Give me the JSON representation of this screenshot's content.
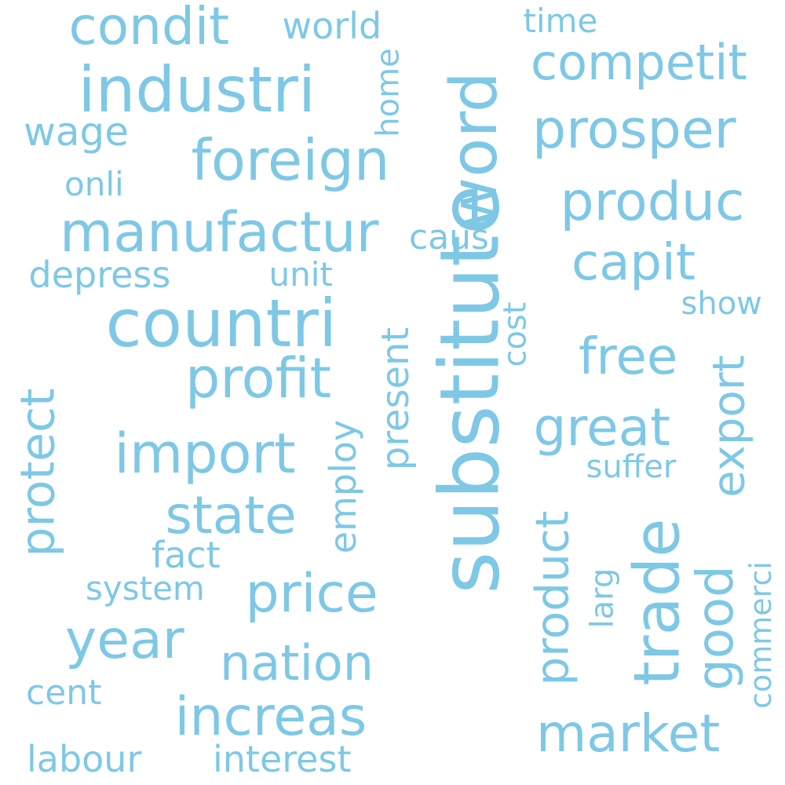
{
  "color": "#7ec8e6",
  "words": [
    {
      "text": "substitute",
      "weight": 104,
      "orientation": "vertical"
    },
    {
      "text": "countri",
      "weight": 84,
      "orientation": "horizontal"
    },
    {
      "text": "industri",
      "weight": 80,
      "orientation": "horizontal"
    },
    {
      "text": "word",
      "weight": 82,
      "orientation": "vertical"
    },
    {
      "text": "trade",
      "weight": 80,
      "orientation": "vertical"
    },
    {
      "text": "foreign",
      "weight": 72,
      "orientation": "horizontal"
    },
    {
      "text": "manufactur",
      "weight": 70,
      "orientation": "horizontal"
    },
    {
      "text": "import",
      "weight": 70,
      "orientation": "horizontal"
    },
    {
      "text": "profit",
      "weight": 70,
      "orientation": "horizontal"
    },
    {
      "text": "prosper",
      "weight": 68,
      "orientation": "horizontal"
    },
    {
      "text": "produc",
      "weight": 68,
      "orientation": "horizontal"
    },
    {
      "text": "increas",
      "weight": 68,
      "orientation": "horizontal"
    },
    {
      "text": "price",
      "weight": 68,
      "orientation": "horizontal"
    },
    {
      "text": "year",
      "weight": 68,
      "orientation": "horizontal"
    },
    {
      "text": "great",
      "weight": 66,
      "orientation": "horizontal"
    },
    {
      "text": "state",
      "weight": 66,
      "orientation": "horizontal"
    },
    {
      "text": "condit",
      "weight": 66,
      "orientation": "horizontal"
    },
    {
      "text": "market",
      "weight": 66,
      "orientation": "horizontal"
    },
    {
      "text": "capit",
      "weight": 64,
      "orientation": "horizontal"
    },
    {
      "text": "free",
      "weight": 64,
      "orientation": "horizontal"
    },
    {
      "text": "good",
      "weight": 64,
      "orientation": "vertical"
    },
    {
      "text": "competit",
      "weight": 62,
      "orientation": "horizontal"
    },
    {
      "text": "nation",
      "weight": 62,
      "orientation": "horizontal"
    },
    {
      "text": "protect",
      "weight": 60,
      "orientation": "vertical"
    },
    {
      "text": "product",
      "weight": 58,
      "orientation": "vertical"
    },
    {
      "text": "export",
      "weight": 56,
      "orientation": "vertical"
    },
    {
      "text": "wage",
      "weight": 50,
      "orientation": "horizontal"
    },
    {
      "text": "present",
      "weight": 48,
      "orientation": "vertical"
    },
    {
      "text": "world",
      "weight": 46,
      "orientation": "horizontal"
    },
    {
      "text": "labour",
      "weight": 46,
      "orientation": "horizontal"
    },
    {
      "text": "interest",
      "weight": 46,
      "orientation": "horizontal"
    },
    {
      "text": "depress",
      "weight": 46,
      "orientation": "horizontal"
    },
    {
      "text": "fact",
      "weight": 46,
      "orientation": "horizontal"
    },
    {
      "text": "employ",
      "weight": 46,
      "orientation": "vertical"
    },
    {
      "text": "caus",
      "weight": 44,
      "orientation": "horizontal"
    },
    {
      "text": "cent",
      "weight": 44,
      "orientation": "horizontal"
    },
    {
      "text": "system",
      "weight": 42,
      "orientation": "horizontal"
    },
    {
      "text": "onli",
      "weight": 42,
      "orientation": "horizontal"
    },
    {
      "text": "unit",
      "weight": 42,
      "orientation": "horizontal"
    },
    {
      "text": "time",
      "weight": 42,
      "orientation": "horizontal"
    },
    {
      "text": "show",
      "weight": 40,
      "orientation": "horizontal"
    },
    {
      "text": "suffer",
      "weight": 40,
      "orientation": "horizontal"
    },
    {
      "text": "cost",
      "weight": 40,
      "orientation": "vertical"
    },
    {
      "text": "home",
      "weight": 40,
      "orientation": "vertical"
    },
    {
      "text": "larg",
      "weight": 40,
      "orientation": "vertical"
    },
    {
      "text": "commerci",
      "weight": 38,
      "orientation": "vertical"
    }
  ]
}
